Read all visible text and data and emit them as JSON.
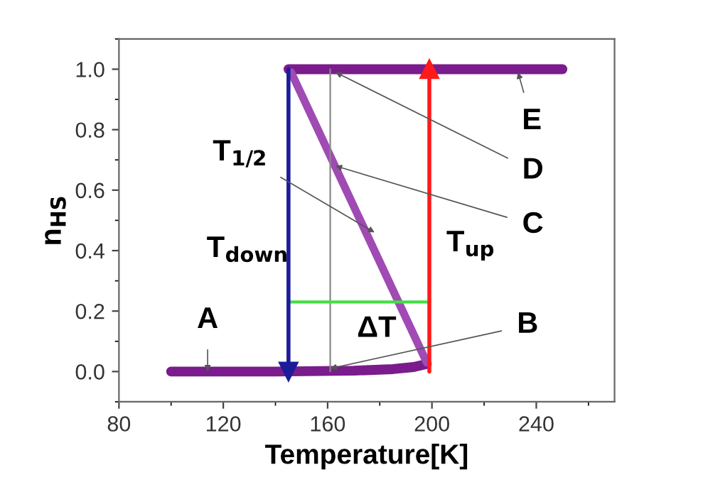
{
  "chart_data": {
    "type": "line",
    "xlabel": "Temperature[K]",
    "ylabel": "n$_{HS}$",
    "xlim": [
      80,
      270
    ],
    "ylim": [
      -0.1,
      1.1
    ],
    "xticks": [
      80,
      120,
      160,
      200,
      240
    ],
    "yticks": [
      {
        "value": 0,
        "label": "0.0"
      },
      {
        "value": 0.2,
        "label": "0.2"
      },
      {
        "value": 0.4,
        "label": "0.4"
      },
      {
        "value": 0.6,
        "label": "0.6"
      },
      {
        "value": 0.8,
        "label": "0.8"
      },
      {
        "value": 1,
        "label": "1.0"
      }
    ],
    "grid": false,
    "marker": "none",
    "series": [
      {
        "color": "#7a1c8c",
        "x": [
          100,
          140,
          170,
          185,
          193,
          198
        ],
        "values": [
          0,
          0,
          0.003,
          0.008,
          0.015,
          0.025
        ]
      },
      {
        "color": "#7a1c8c",
        "x": [
          145,
          250
        ],
        "values": [
          1.0,
          1.0
        ]
      },
      {
        "color": "#a04ab4",
        "x": [
          146,
          198
        ],
        "values": [
          0.99,
          0.03
        ]
      },
      {
        "color": "#888888",
        "x": [
          161,
          161
        ],
        "values": [
          0,
          1.0
        ]
      },
      {
        "color": "#44dd44",
        "x": [
          145,
          198
        ],
        "values": [
          0.23,
          0.23
        ]
      },
      {
        "color": "#1c1c9a",
        "x": [
          145,
          145
        ],
        "values": [
          1.0,
          0
        ],
        "marker": "triangle"
      },
      {
        "color": "#ff1a1a",
        "x": [
          199,
          199
        ],
        "values": [
          0,
          1.0
        ],
        "marker": "triangle"
      }
    ],
    "annotations": [
      {
        "text": "A",
        "x": 114,
        "y": 0.0
      },
      {
        "text": "B",
        "x": 161,
        "y": 0.01
      },
      {
        "text": "C",
        "x": 163,
        "y": 0.68
      },
      {
        "text": "D",
        "x": 163,
        "y": 0.99
      },
      {
        "text": "E",
        "x": 233,
        "y": 0.99
      },
      {
        "text": "T$_{1/2}$",
        "x": 178,
        "y": 0.46
      },
      "T$_{down}$",
      "T$_{up}$",
      "ΔT"
    ]
  }
}
